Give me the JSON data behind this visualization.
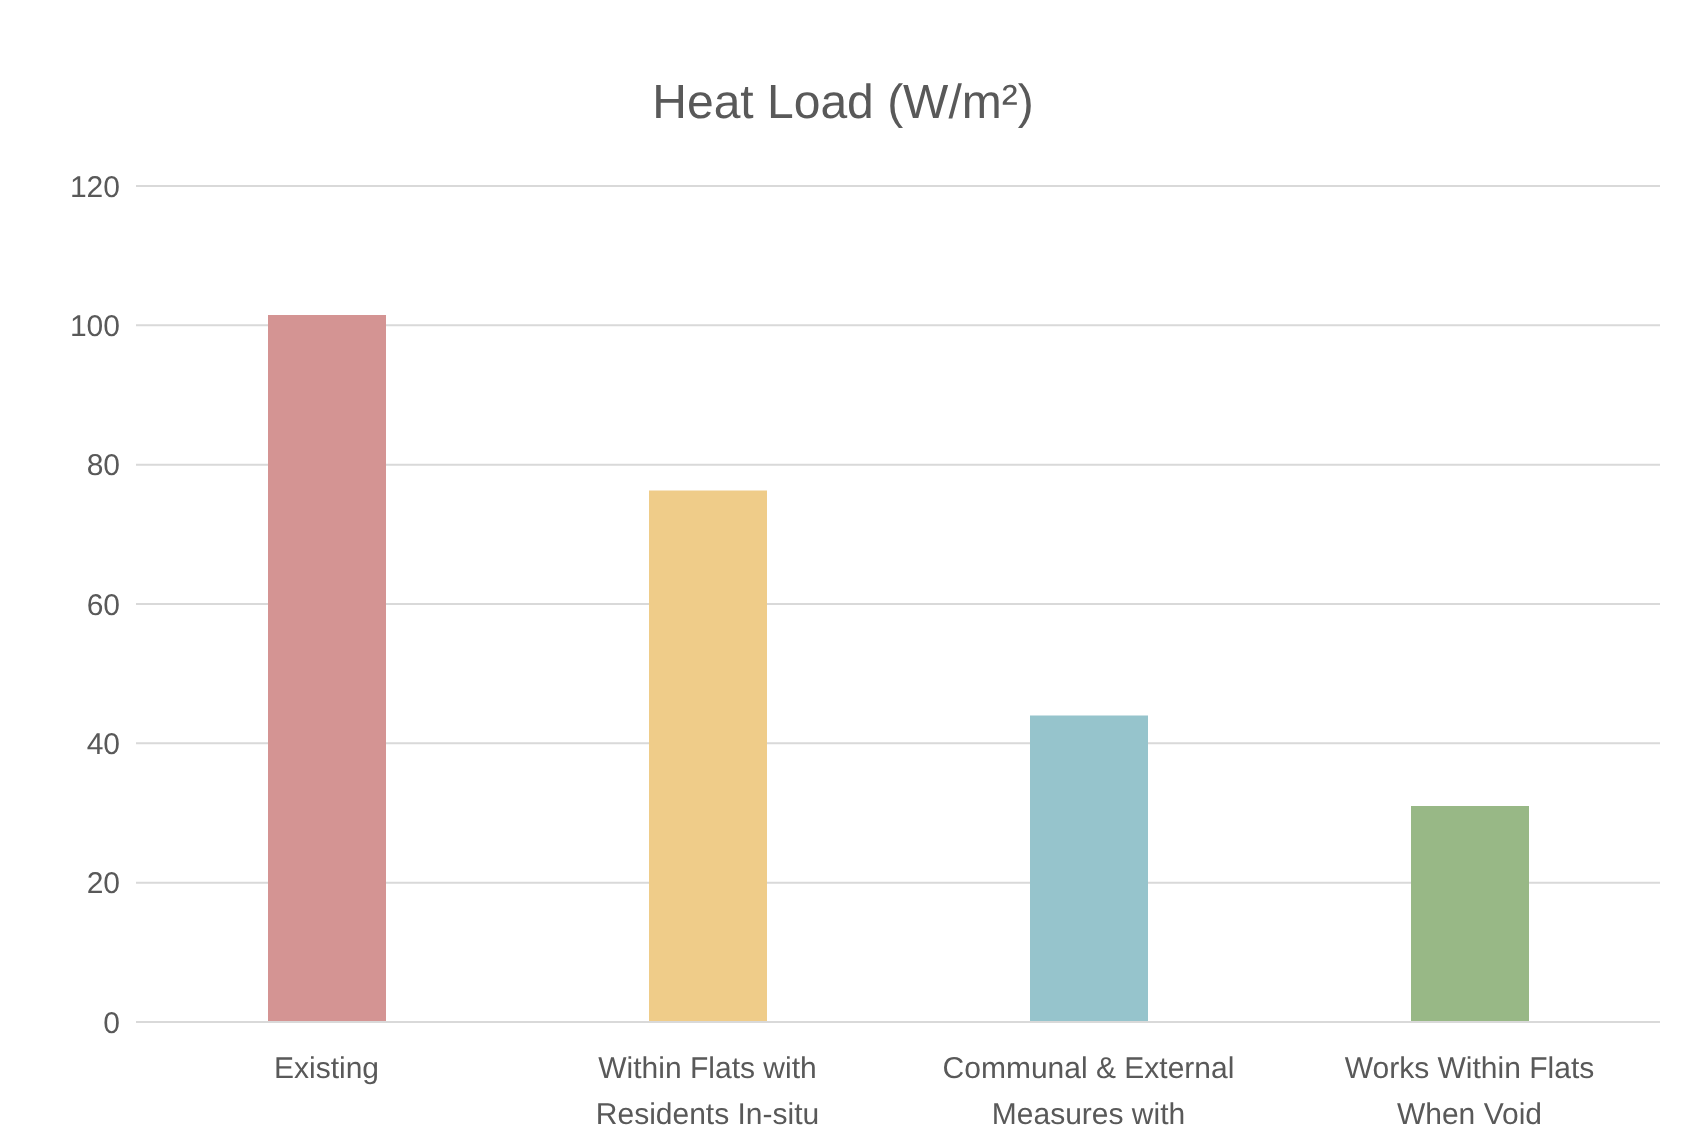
{
  "chart_data": {
    "type": "bar",
    "title": "Heat Load (W/m²)",
    "categories": [
      "Existing",
      "Within Flats with Residents In-situ",
      "Communal & External Measures with",
      "Works Within Flats When Void"
    ],
    "values": [
      101.5,
      76.3,
      44,
      31
    ],
    "colors": [
      "#d49493",
      "#efcc89",
      "#96c4cc",
      "#98b886"
    ],
    "ylim": [
      0,
      120
    ],
    "yticks": [
      0,
      20,
      40,
      60,
      80,
      100,
      120
    ],
    "grid": "y"
  }
}
